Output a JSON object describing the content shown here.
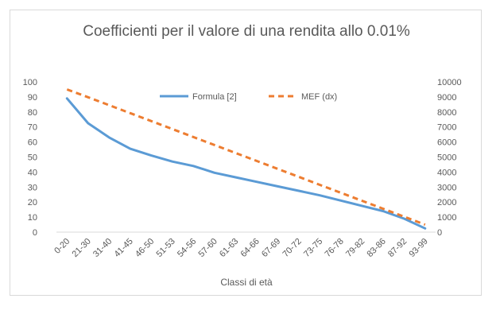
{
  "chart_data": {
    "type": "line",
    "title": "Coefficienti  per il valore di una rendita allo 0.01%",
    "xlabel": "Classi di età",
    "ylabel": "",
    "y2label": "",
    "categories": [
      "0-20",
      "21-30",
      "31-40",
      "41-45",
      "46-50",
      "51-53",
      "54-56",
      "57-60",
      "61-63",
      "64-66",
      "67-69",
      "70-72",
      "73-75",
      "76-78",
      "79-82",
      "83-86",
      "87-92",
      "93-99"
    ],
    "ylim": [
      0,
      100
    ],
    "y2lim": [
      0,
      10000
    ],
    "yticks": [
      "0",
      "10",
      "20",
      "30",
      "40",
      "50",
      "60",
      "70",
      "80",
      "90",
      "100"
    ],
    "y2ticks": [
      "0",
      "1000",
      "2000",
      "3000",
      "4000",
      "5000",
      "6000",
      "7000",
      "8000",
      "9000",
      "10000"
    ],
    "grid": false,
    "legend_position": "top-right",
    "series": [
      {
        "name": "Formula [2]",
        "axis": "left",
        "style": "solid",
        "color": "#5b9bd5",
        "values": [
          89,
          72.5,
          63,
          55.5,
          51,
          47,
          44,
          39.5,
          36.5,
          33.5,
          30.5,
          27.5,
          24.5,
          21,
          17.5,
          14,
          9,
          2.5
        ]
      },
      {
        "name": "MEF (dx)",
        "axis": "right",
        "style": "dashed",
        "color": "#ed7d31",
        "values": [
          9500,
          8980,
          8450,
          7920,
          7390,
          6860,
          6330,
          5800,
          5270,
          4740,
          4210,
          3680,
          3150,
          2620,
          2090,
          1560,
          1030,
          500
        ]
      }
    ]
  }
}
